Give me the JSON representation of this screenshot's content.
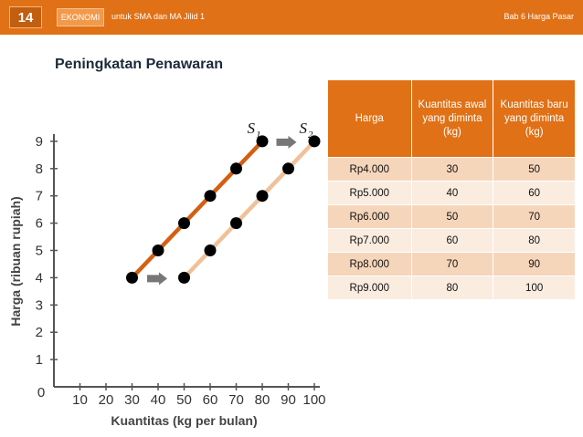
{
  "header": {
    "page_number": "14",
    "subject": "EKONOMI",
    "book_title": "untuk SMA dan MA Jilid 1",
    "chapter_title": "Bab 6 Harga Pasar"
  },
  "slide_title": "Peningkatan Penawaran",
  "colors": {
    "header_orange": "#e07116",
    "s1_line": "#d45f12",
    "s2_line": "#f0c199",
    "point": "#000000",
    "arrow": "#777777"
  },
  "chart_data": {
    "type": "line",
    "title": "",
    "xlabel": "Kuantitas (kg per bulan)",
    "ylabel": "Harga (ribuan rupiah)",
    "origin_label": "0",
    "xlim": [
      0,
      100
    ],
    "ylim": [
      0,
      9
    ],
    "x_ticks": [
      10,
      20,
      30,
      40,
      50,
      60,
      70,
      80,
      90,
      100
    ],
    "y_ticks": [
      1,
      2,
      3,
      4,
      5,
      6,
      7,
      8,
      9
    ],
    "series": [
      {
        "name": "S",
        "subscript": "1",
        "x": [
          30,
          40,
          50,
          60,
          70,
          80
        ],
        "y": [
          4,
          5,
          6,
          7,
          8,
          9
        ]
      },
      {
        "name": "S",
        "subscript": "2",
        "x": [
          50,
          60,
          70,
          80,
          90,
          100
        ],
        "y": [
          4,
          5,
          6,
          7,
          8,
          9
        ]
      }
    ],
    "shift_arrows": "right"
  },
  "table": {
    "headers": [
      "Harga",
      "Kuantitas awal yang diminta (kg)",
      "Kuantitas baru yang diminta (kg)"
    ],
    "rows": [
      [
        "Rp4.000",
        "30",
        "50"
      ],
      [
        "Rp5.000",
        "40",
        "60"
      ],
      [
        "Rp6.000",
        "50",
        "70"
      ],
      [
        "Rp7.000",
        "60",
        "80"
      ],
      [
        "Rp8.000",
        "70",
        "90"
      ],
      [
        "Rp9.000",
        "80",
        "100"
      ]
    ]
  }
}
